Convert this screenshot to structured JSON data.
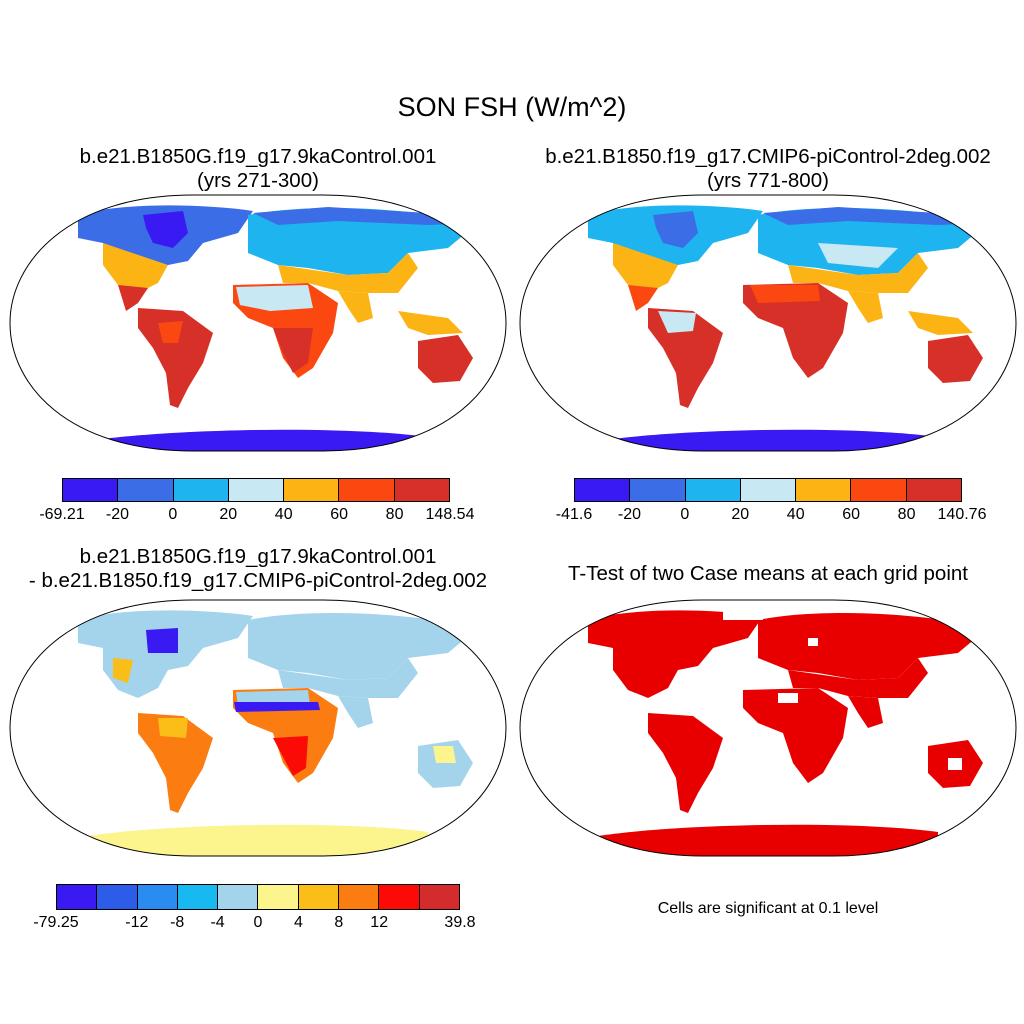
{
  "title": "SON FSH (W/m^2)",
  "panels": {
    "top_left": {
      "title_line1": "b.e21.B1850G.f19_g17.9kaControl.001",
      "title_line2": "(yrs 271-300)",
      "colorbar": {
        "colors": [
          "#3a1af2",
          "#3b6de6",
          "#1eb4ef",
          "#c8e8f4",
          "#fbb414",
          "#fb4810",
          "#d63028"
        ],
        "labels": [
          "-69.21",
          "-20",
          "0",
          "20",
          "40",
          "60",
          "80",
          "148.54"
        ]
      }
    },
    "top_right": {
      "title_line1": "b.e21.B1850.f19_g17.CMIP6-piControl-2deg.002",
      "title_line2": "(yrs 771-800)",
      "colorbar": {
        "colors": [
          "#3a1af2",
          "#3b6de6",
          "#1eb4ef",
          "#c8e8f4",
          "#fbb414",
          "#fb4810",
          "#d63028"
        ],
        "labels": [
          "-41.6",
          "-20",
          "0",
          "20",
          "40",
          "60",
          "80",
          "140.76"
        ]
      }
    },
    "bottom_left": {
      "title_line1": "b.e21.B1850G.f19_g17.9kaControl.001",
      "title_line2": "- b.e21.B1850.f19_g17.CMIP6-piControl-2deg.002",
      "colorbar": {
        "colors": [
          "#3a1af2",
          "#2d5ce8",
          "#2a8cf0",
          "#18b8f0",
          "#a4d4ec",
          "#fcf48c",
          "#fbbe18",
          "#fb7c10",
          "#fb0a06",
          "#d42c2c"
        ],
        "labels": [
          "-79.25",
          "",
          "-12",
          "-8",
          "-4",
          "0",
          "4",
          "8",
          "12",
          "",
          "39.8"
        ]
      }
    },
    "bottom_right": {
      "title": "T-Test of two Case means at each grid point",
      "note": "Cells are significant at 0.1 level",
      "color": "#e80000"
    }
  }
}
